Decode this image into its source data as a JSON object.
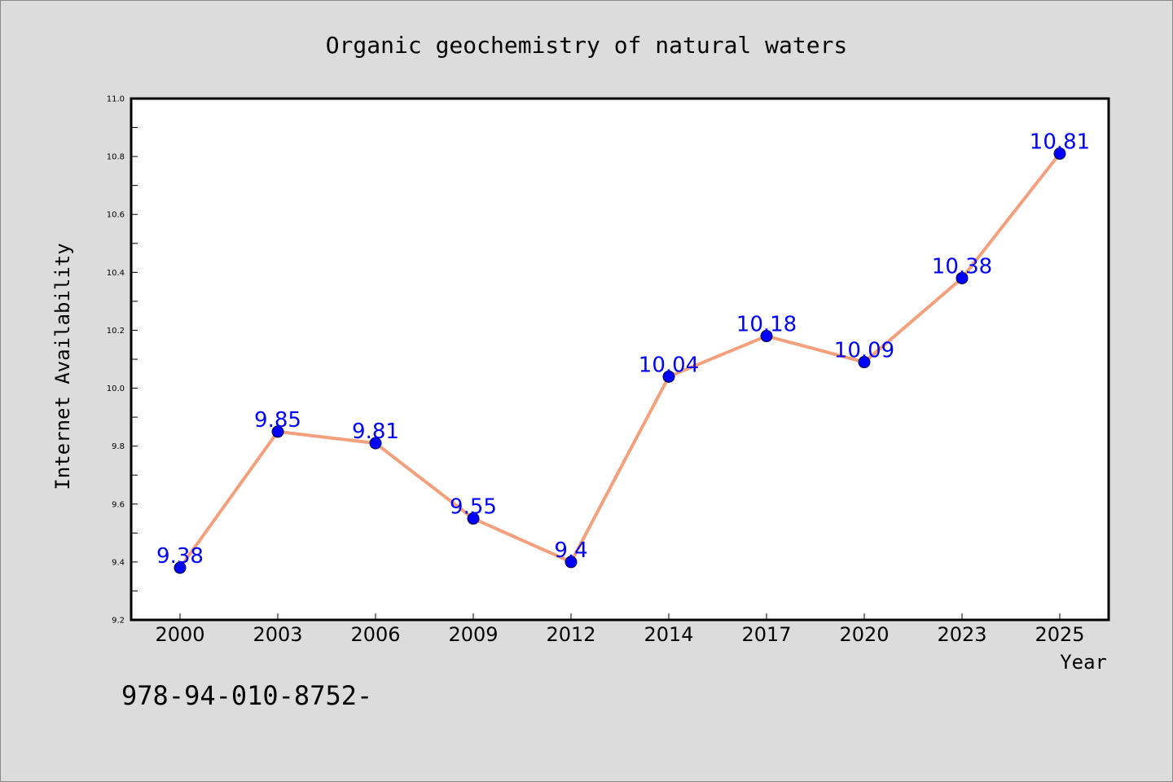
{
  "chart_data": {
    "type": "line",
    "title": "Organic geochemistry of natural waters",
    "xlabel": "Year",
    "ylabel": "Internet Availability",
    "categories": [
      "2000",
      "2003",
      "2006",
      "2009",
      "2012",
      "2014",
      "2017",
      "2020",
      "2023",
      "2025"
    ],
    "series": [
      {
        "values": [
          9.38,
          9.85,
          9.81,
          9.55,
          9.4,
          10.04,
          10.18,
          10.09,
          10.38,
          10.81
        ],
        "data_labels": [
          "9.38",
          "9.85",
          "9.81",
          "9.55",
          "9.4",
          "10.04",
          "10.18",
          "10.09",
          "10.38",
          "10.81"
        ]
      }
    ],
    "ylim": [
      9.2,
      11.0
    ],
    "yticks": [
      "9.2",
      "9.4",
      "9.6",
      "9.8",
      "10.0",
      "10.2",
      "10.4",
      "10.6",
      "10.8",
      "11.0"
    ],
    "grid": false,
    "colors": {
      "line": "#f4a07c",
      "marker": "#0000ff",
      "data_label": "#0000ff",
      "background": "#dcdcdc",
      "plot_background": "#ffffff"
    }
  },
  "footer": {
    "text": "978-94-010-8752-"
  }
}
